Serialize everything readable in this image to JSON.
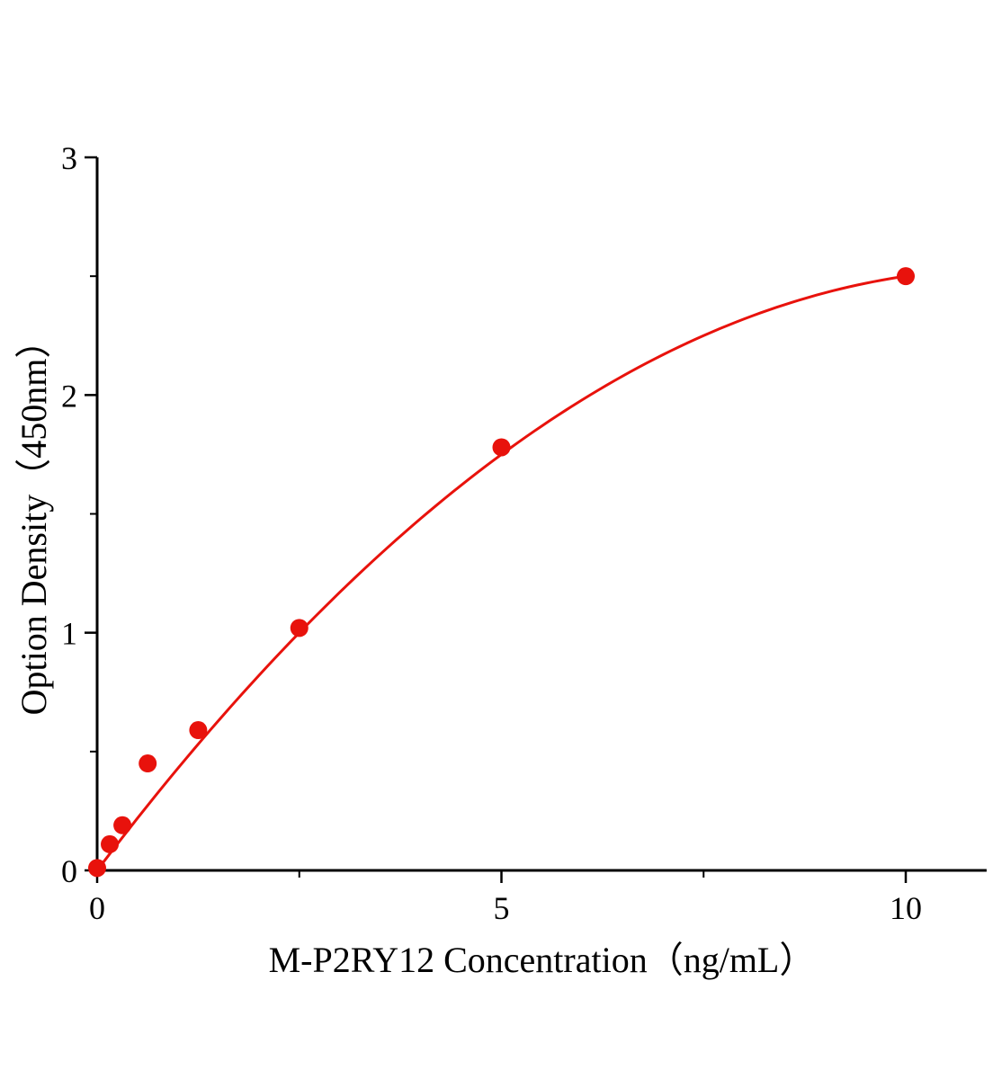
{
  "page": {
    "background": "#ffffff"
  },
  "chart_data": {
    "type": "scatter",
    "title": "",
    "xlabel": "M-P2RY12 Concentration（ng/mL）",
    "ylabel": "Option Density（450nm）",
    "points": {
      "x": [
        0,
        0.156,
        0.3125,
        0.625,
        1.25,
        2.5,
        5,
        10
      ],
      "y": [
        0.01,
        0.11,
        0.19,
        0.45,
        0.59,
        1.02,
        1.78,
        2.5
      ]
    },
    "curve_fit": {
      "type": "quadratic",
      "a": 0.45,
      "b": -0.02,
      "x_start": 0,
      "x_end": 10
    },
    "xlim": [
      0,
      11
    ],
    "ylim": [
      0,
      3
    ],
    "xticks_major": {
      "values": [
        0,
        5,
        10
      ],
      "labels": [
        "0",
        "5",
        "10"
      ]
    },
    "xticks_minor": [
      2.5,
      7.5
    ],
    "yticks_major": {
      "values": [
        0,
        1,
        2,
        3
      ],
      "labels": [
        "0",
        "1",
        "2",
        "3"
      ]
    },
    "yticks_minor": [
      0.5,
      1.5,
      2.5
    ],
    "grid": false,
    "legend": null,
    "marker_color": "#e8120c",
    "line_color": "#e8120c",
    "axis_color": "#000000",
    "marker_radius": 10,
    "line_width": 3
  }
}
